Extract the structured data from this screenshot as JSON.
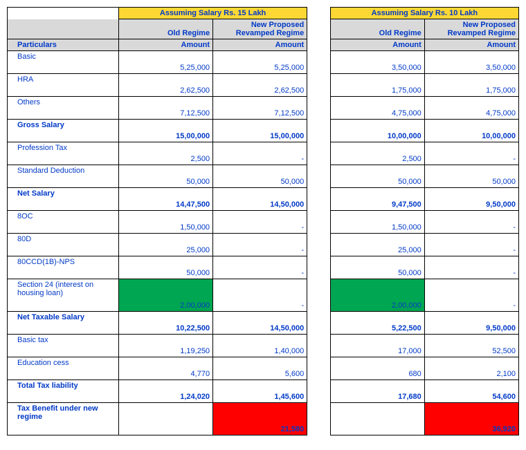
{
  "header": {
    "group15": "Assuming Salary Rs. 15 Lakh",
    "group10": "Assuming Salary Rs. 10 Lakh",
    "old_regime": "Old Regime",
    "new_regime": "New Proposed Revamped Regime",
    "amount": "Amount",
    "particulars": "Particulars"
  },
  "rows": [
    {
      "label": "Basic",
      "bold": false,
      "a": "5,25,000",
      "b": "5,25,000",
      "c": "3,50,000",
      "d": "3,50,000"
    },
    {
      "label": "HRA",
      "bold": false,
      "a": "2,62,500",
      "b": "2,62,500",
      "c": "1,75,000",
      "d": "1,75,000"
    },
    {
      "label": "Others",
      "bold": false,
      "a": "7,12,500",
      "b": "7,12,500",
      "c": "4,75,000",
      "d": "4,75,000"
    },
    {
      "label": "Gross  Salary",
      "bold": true,
      "a": "15,00,000",
      "b": "15,00,000",
      "c": "10,00,000",
      "d": "10,00,000"
    },
    {
      "label": "Profession Tax",
      "bold": false,
      "a": "2,500",
      "b": "-",
      "c": "2,500",
      "d": "-"
    },
    {
      "label": "Standard Deduction",
      "bold": false,
      "a": "50,000",
      "b": "50,000",
      "c": "50,000",
      "d": "50,000"
    },
    {
      "label": "Net  Salary",
      "bold": true,
      "a": "14,47,500",
      "b": "14,50,000",
      "c": "9,47,500",
      "d": "9,50,000"
    },
    {
      "label": "8OC",
      "bold": false,
      "a": "1,50,000",
      "b": "-",
      "c": "1,50,000",
      "d": "-"
    },
    {
      "label": "80D",
      "bold": false,
      "a": "25,000",
      "b": "-",
      "c": "25,000",
      "d": "-"
    },
    {
      "label": "80CCD(1B)-NPS",
      "bold": false,
      "a": "50,000",
      "b": "-",
      "c": "50,000",
      "d": "-"
    },
    {
      "label": "Section  24 (interest on housing loan)",
      "bold": false,
      "a": "2,00,000",
      "b": "-",
      "c": "2,00,000",
      "d": "-",
      "style": "green"
    },
    {
      "label": "Net Taxable Salary",
      "bold": true,
      "a": "10,22,500",
      "b": "14,50,000",
      "c": "5,22,500",
      "d": "9,50,000"
    },
    {
      "label": "Basic tax",
      "bold": false,
      "a": "1,19,250",
      "b": "1,40,000",
      "c": "17,000",
      "d": "52,500"
    },
    {
      "label": "Education  cess",
      "bold": false,
      "a": "4,770",
      "b": "5,600",
      "c": "680",
      "d": "2,100"
    },
    {
      "label": "Total  Tax liability",
      "bold": true,
      "a": "1,24,020",
      "b": "1,45,600",
      "c": "17,680",
      "d": "54,600"
    },
    {
      "label": "Tax Benefit under new regime",
      "bold": true,
      "a": "",
      "b": "21,580",
      "c": "",
      "d": "36,920",
      "style": "red"
    }
  ],
  "colors": {
    "yellow": "#fdd835",
    "grey": "#d9d9d9",
    "blue": "#0039c7",
    "green": "#00a651",
    "red": "#ff0000"
  },
  "col_widths": {
    "particulars": 130,
    "val": 110,
    "spacer": 18
  }
}
